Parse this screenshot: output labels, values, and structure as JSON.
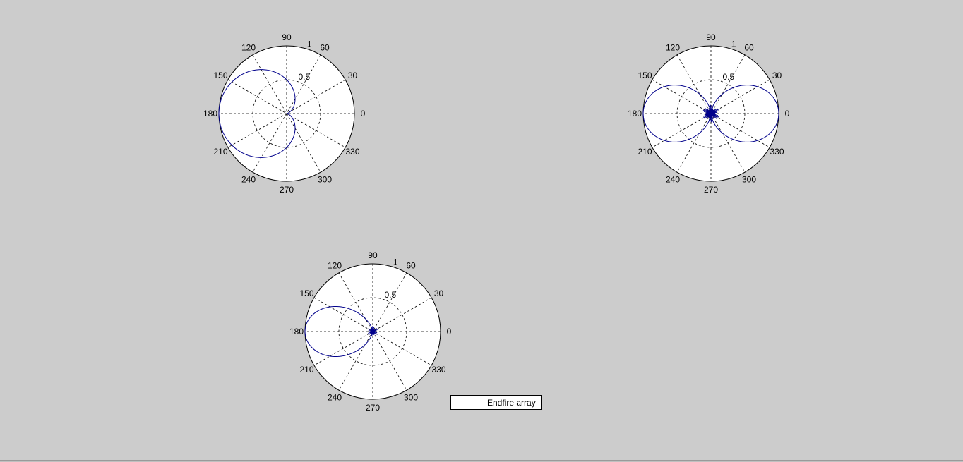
{
  "chart_data": [
    {
      "type": "polar",
      "title": "",
      "rlim": [
        0,
        1
      ],
      "radial_tick_labels": [
        "0.5",
        "1"
      ],
      "angle_tick_labels": [
        "0",
        "30",
        "60",
        "90",
        "120",
        "150",
        "180",
        "210",
        "240",
        "270",
        "300",
        "330"
      ],
      "grid": true,
      "pattern": "cardioid",
      "description_points": [
        {
          "theta_deg": 0,
          "r": 0.0
        },
        {
          "theta_deg": 90,
          "r": 0.5
        },
        {
          "theta_deg": 180,
          "r": 1.0
        },
        {
          "theta_deg": 270,
          "r": 0.5
        }
      ],
      "series_color": "#00008b"
    },
    {
      "type": "polar",
      "title": "",
      "rlim": [
        0,
        1
      ],
      "radial_tick_labels": [
        "0.5",
        "1"
      ],
      "angle_tick_labels": [
        "0",
        "30",
        "60",
        "90",
        "120",
        "150",
        "180",
        "210",
        "240",
        "270",
        "300",
        "330"
      ],
      "grid": true,
      "pattern": "figure-eight",
      "description_points": [
        {
          "theta_deg": 0,
          "r": 1.0
        },
        {
          "theta_deg": 90,
          "r": 0.0
        },
        {
          "theta_deg": 180,
          "r": 1.0
        },
        {
          "theta_deg": 270,
          "r": 0.0
        }
      ],
      "series_color": "#00008b"
    },
    {
      "type": "polar",
      "title": "",
      "rlim": [
        0,
        1
      ],
      "radial_tick_labels": [
        "0.5",
        "1"
      ],
      "angle_tick_labels": [
        "0",
        "30",
        "60",
        "90",
        "120",
        "150",
        "180",
        "210",
        "240",
        "270",
        "300",
        "330"
      ],
      "grid": true,
      "pattern": "endfire",
      "description_points": [
        {
          "theta_deg": 0,
          "r": 0.0
        },
        {
          "theta_deg": 150,
          "r": 0.55
        },
        {
          "theta_deg": 180,
          "r": 1.0
        },
        {
          "theta_deg": 210,
          "r": 0.55
        }
      ],
      "series_color": "#00008b",
      "legend": [
        "Endfire array"
      ]
    }
  ],
  "legend": {
    "label": "Endfire array"
  }
}
